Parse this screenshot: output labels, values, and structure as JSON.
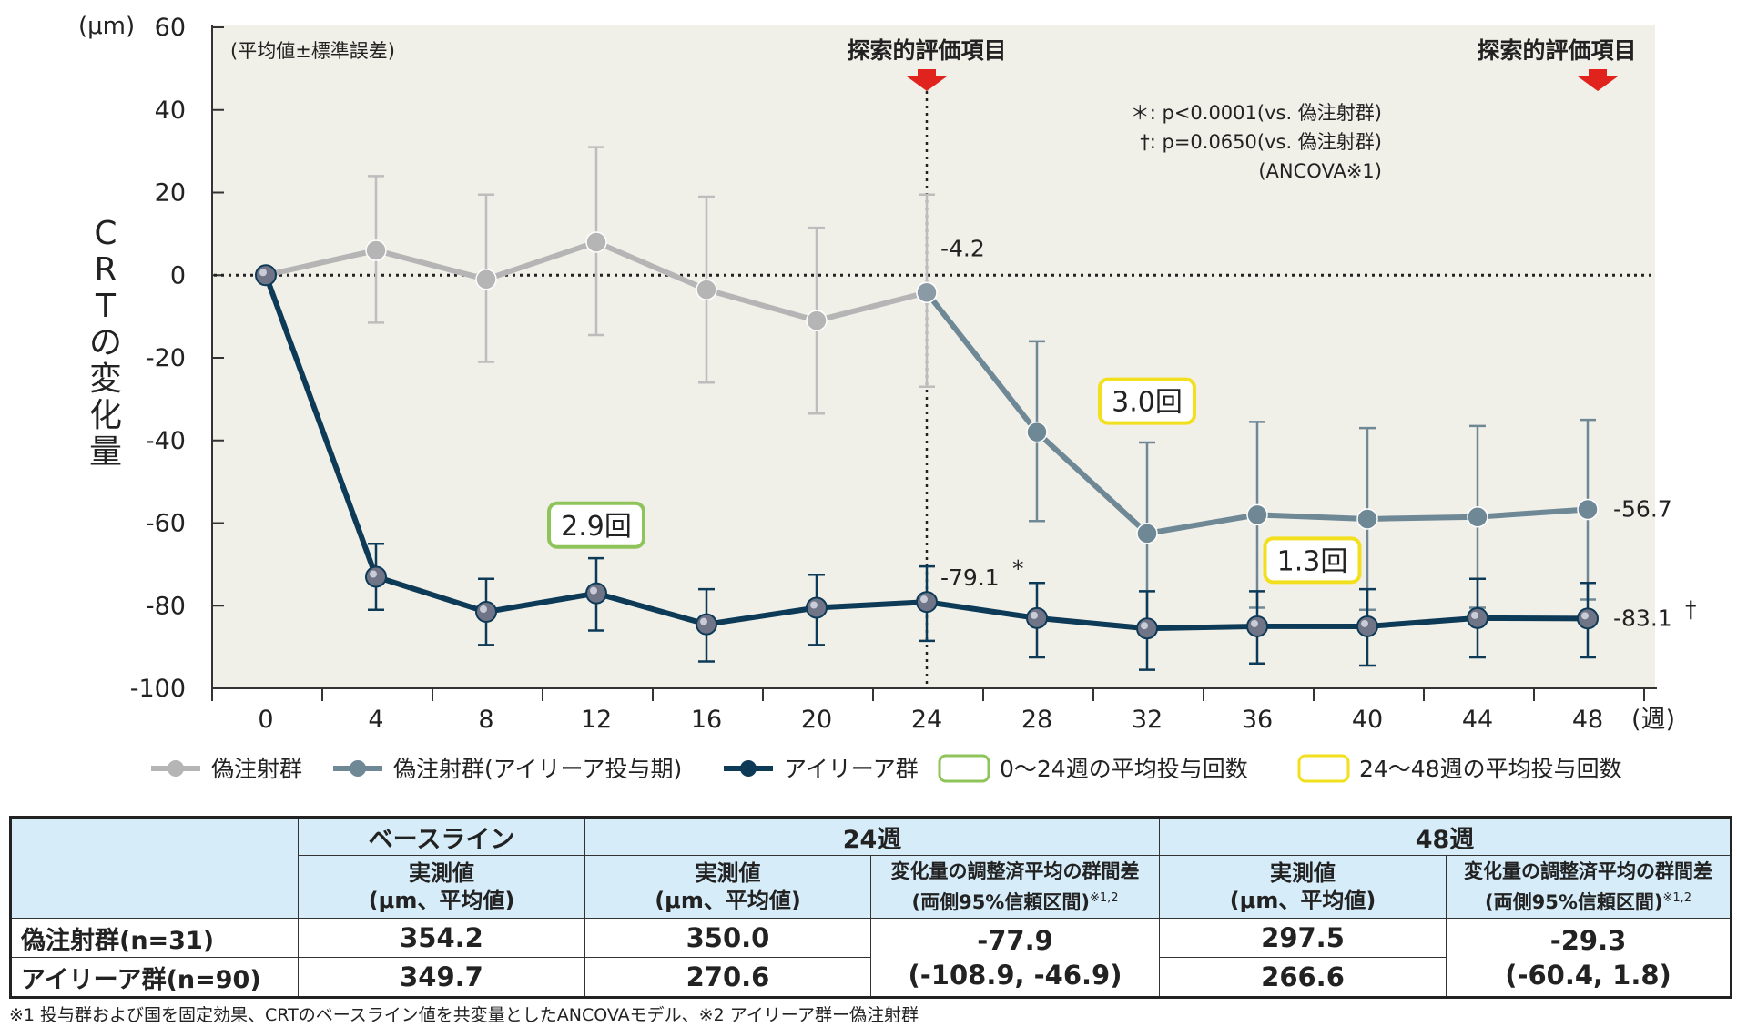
{
  "chart_data": {
    "type": "line",
    "ylabel": "CRTの変化量",
    "yunit": "(μm)",
    "xunit": "(週)",
    "ylim": [
      -100,
      60
    ],
    "yticks": [
      60,
      40,
      20,
      0,
      -20,
      -40,
      -60,
      -80,
      -100
    ],
    "x": [
      0,
      4,
      8,
      12,
      16,
      20,
      24,
      28,
      32,
      36,
      40,
      44,
      48
    ],
    "note_top_left": "(平均値±標準誤差)",
    "markers": [
      {
        "label": "探索的評価項目",
        "x": 24
      },
      {
        "label": "探索的評価項目",
        "x": 48
      }
    ],
    "stats": [
      "＊: p<0.0001(vs. 偽注射群)",
      "†: p=0.0650(vs. 偽注射群)",
      "(ANCOVA※1)"
    ],
    "grid": false,
    "series": [
      {
        "name": "偽注射群",
        "color": "#b5b5b5",
        "x": [
          0,
          4,
          8,
          12,
          16,
          20,
          24
        ],
        "y": [
          0,
          6,
          -1,
          8,
          -3.5,
          -11,
          -4.2
        ],
        "err_upper": [
          0,
          24,
          19.5,
          31,
          19,
          11.5,
          19.5
        ],
        "err_lower": [
          0,
          -11.5,
          -21,
          -14.5,
          -26,
          -33.5,
          -27
        ]
      },
      {
        "name": "偽注射群(アイリーア投与期)",
        "color": "#6f8896",
        "x": [
          24,
          28,
          32,
          36,
          40,
          44,
          48
        ],
        "y": [
          -4.2,
          -38,
          -62.5,
          -58,
          -59,
          -58.5,
          -56.7
        ],
        "err_upper": [
          19.5,
          -16,
          -40.5,
          -35.5,
          -37,
          -36.5,
          -35
        ],
        "err_lower": [
          -27,
          -59.5,
          -84.5,
          -80.5,
          -81,
          -80.5,
          -78.5
        ]
      },
      {
        "name": "アイリーア群",
        "color": "#0c3a57",
        "x": [
          0,
          4,
          8,
          12,
          16,
          20,
          24,
          28,
          32,
          36,
          40,
          44,
          48
        ],
        "y": [
          0,
          -73,
          -81.5,
          -77,
          -84.5,
          -80.5,
          -79.1,
          -83,
          -85.5,
          -85,
          -85,
          -83,
          -83.1
        ],
        "err_upper": [
          0,
          -65,
          -73.5,
          -68.5,
          -76,
          -72.5,
          -70.5,
          -74.5,
          -76.5,
          -76.5,
          -76,
          -73.5,
          -74.5
        ],
        "err_lower": [
          0,
          -81,
          -89.5,
          -86,
          -93.5,
          -89.5,
          -88.5,
          -92.5,
          -95.5,
          -94,
          -94.5,
          -92.5,
          -92.5
        ]
      }
    ],
    "value_labels": [
      {
        "text": "-4.2",
        "x": 24,
        "y": -4.2
      },
      {
        "text": "-79.1",
        "sup": "*",
        "x": 24,
        "y": -79.1
      },
      {
        "text": "-56.7",
        "x": 48,
        "y": -56.7
      },
      {
        "text": "-83.1",
        "sup": "†",
        "x": 48,
        "y": -83.1
      }
    ],
    "dose_boxes": [
      {
        "text": "2.9回",
        "x": 12,
        "y": -60.5,
        "color": "#8fc45a"
      },
      {
        "text": "3.0回",
        "x": 32,
        "y": -30.5,
        "color": "#f2e01f"
      },
      {
        "text": "1.3回",
        "x": 38,
        "y": -69,
        "color": "#f2e01f"
      }
    ],
    "legend": {
      "placement": "bottom",
      "items": [
        {
          "label": "偽注射群",
          "kind": "line",
          "color": "#b5b5b5"
        },
        {
          "label": "偽注射群(アイリーア投与期)",
          "kind": "line",
          "color": "#6f8896"
        },
        {
          "label": "アイリーア群",
          "kind": "line",
          "color": "#0c3a57"
        },
        {
          "label": "0〜24週の平均投与回数",
          "kind": "box",
          "color": "#8fc45a"
        },
        {
          "label": "24〜48週の平均投与回数",
          "kind": "box",
          "color": "#f2e01f"
        }
      ]
    }
  },
  "table": {
    "group_headers": [
      "ベースライン",
      "24週",
      "48週"
    ],
    "measured_line1": "実測値",
    "measured_line2": "(μm、平均値)",
    "diff_line1": "変化量の調整済平均の群間差",
    "diff_line2": "(両側95%信頼区間)",
    "diff_sup": "※1,2",
    "rows": [
      {
        "label": "偽注射群(n=31)",
        "baseline": "354.2",
        "w24": "350.0",
        "w48": "297.5"
      },
      {
        "label": "アイリーア群(n=90)",
        "baseline": "349.7",
        "w24": "270.6",
        "w48": "266.6"
      }
    ],
    "diff24_line1": "-77.9",
    "diff24_line2": "(-108.9, -46.9)",
    "diff48_line1": "-29.3",
    "diff48_line2": "(-60.4, 1.8)"
  },
  "footnote": "※1 投与群および国を固定効果、CRTのベースライン値を共変量としたANCOVAモデル、※2 アイリーア群ー偽注射群"
}
